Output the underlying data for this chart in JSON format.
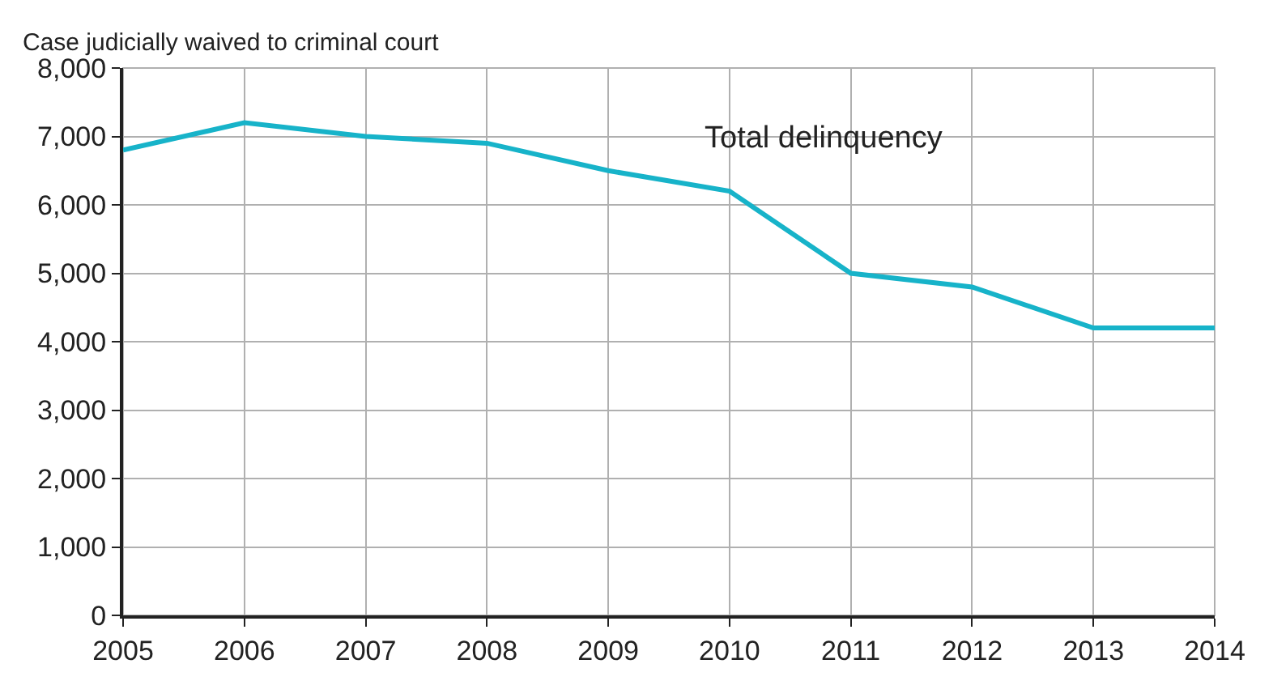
{
  "chart_data": {
    "type": "line",
    "ylabel": "Case judicially waived to criminal court",
    "x": [
      2005,
      2006,
      2007,
      2008,
      2009,
      2010,
      2011,
      2012,
      2013,
      2014
    ],
    "series": [
      {
        "name": "Total delinquency",
        "color": "#17b3c9",
        "values": [
          6800,
          7200,
          7000,
          6900,
          6500,
          6200,
          5000,
          4800,
          4200,
          4200
        ]
      }
    ],
    "xlim": [
      2005,
      2014
    ],
    "xticks": [
      2005,
      2006,
      2007,
      2008,
      2009,
      2010,
      2011,
      2012,
      2013,
      2014
    ],
    "ylim": [
      0,
      8000
    ],
    "yticks": [
      {
        "value": 0,
        "label": "0"
      },
      {
        "value": 1000,
        "label": "1,000"
      },
      {
        "value": 2000,
        "label": "2,000"
      },
      {
        "value": 3000,
        "label": "3,000"
      },
      {
        "value": 4000,
        "label": "4,000"
      },
      {
        "value": 5000,
        "label": "5,000"
      },
      {
        "value": 6000,
        "label": "6,000"
      },
      {
        "value": 7000,
        "label": "7,000"
      },
      {
        "value": 8000,
        "label": "8,000"
      }
    ],
    "grid": true,
    "legend": false,
    "marker": "none",
    "line_style": "solid"
  }
}
